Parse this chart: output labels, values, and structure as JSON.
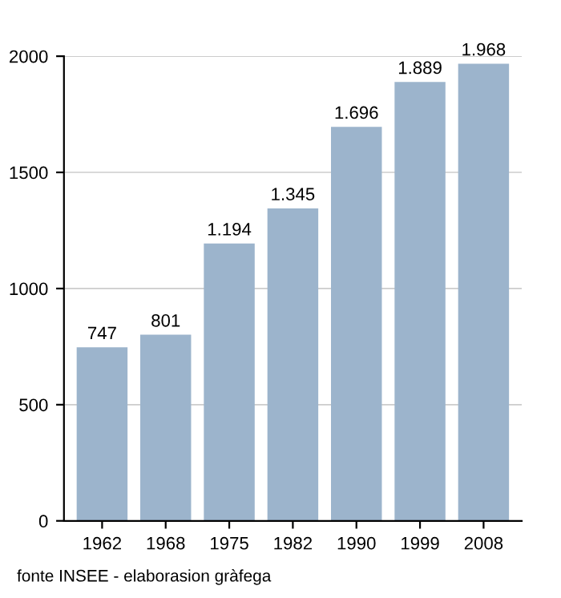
{
  "chart_data": {
    "type": "bar",
    "categories": [
      "1962",
      "1968",
      "1975",
      "1982",
      "1990",
      "1999",
      "2008"
    ],
    "values": [
      747,
      801,
      1194,
      1345,
      1696,
      1889,
      1968
    ],
    "value_labels": [
      "747",
      "801",
      "1.194",
      "1.345",
      "1.696",
      "1.889",
      "1.968"
    ],
    "color": "#9cb4cc",
    "ylim": [
      0,
      2000
    ],
    "yticks": [
      0,
      500,
      1000,
      1500,
      2000
    ],
    "grid": "y",
    "annotations": [
      "fonte INSEE - elaborasion gràfega"
    ]
  }
}
